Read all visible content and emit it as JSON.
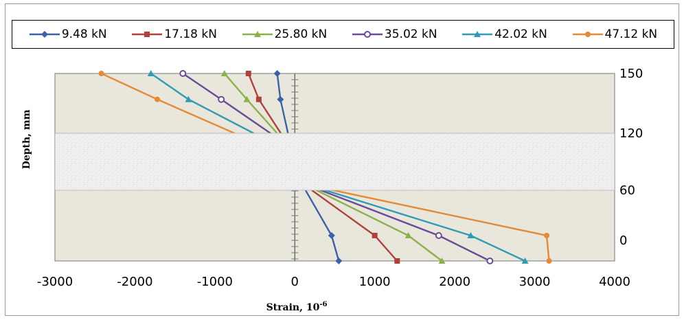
{
  "chart_data": {
    "type": "line",
    "title": "",
    "xlabel": "Strain, 10",
    "xlabel_sup": "-6",
    "ylabel": "Depth, mm",
    "xlim": [
      -3000,
      4000
    ],
    "x_ticks": [
      "-3000",
      "-2000",
      "-1000",
      "0",
      "1000",
      "2000",
      "3000",
      "4000"
    ],
    "y_ticks": [
      "150",
      "120",
      "60",
      "0"
    ],
    "legend_position": "top",
    "grid": false,
    "series": [
      {
        "name": "9.48 kN",
        "color": "#3b62a8",
        "marker": "diamond",
        "points": [
          [
            -220,
            150
          ],
          [
            -180,
            137
          ],
          [
            -80,
            118
          ],
          [
            100,
            65
          ],
          [
            460,
            10
          ],
          [
            550,
            0
          ]
        ]
      },
      {
        "name": "17.18 kN",
        "color": "#b0403c",
        "marker": "square",
        "points": [
          [
            -580,
            150
          ],
          [
            -450,
            137
          ],
          [
            -160,
            118
          ],
          [
            130,
            65
          ],
          [
            1000,
            10
          ],
          [
            1280,
            0
          ]
        ]
      },
      {
        "name": "25.80 kN",
        "color": "#8bb14a",
        "marker": "triangle",
        "points": [
          [
            -880,
            150
          ],
          [
            -600,
            137
          ],
          [
            -200,
            118
          ],
          [
            150,
            65
          ],
          [
            1420,
            10
          ],
          [
            1840,
            0
          ]
        ]
      },
      {
        "name": "35.02 kN",
        "color": "#6a4b98",
        "marker": "circle-open",
        "points": [
          [
            -1400,
            150
          ],
          [
            -920,
            137
          ],
          [
            -270,
            118
          ],
          [
            170,
            65
          ],
          [
            1800,
            10
          ],
          [
            2440,
            0
          ]
        ]
      },
      {
        "name": "42.02 kN",
        "color": "#2f9bb4",
        "marker": "triangle",
        "points": [
          [
            -1800,
            150
          ],
          [
            -1330,
            137
          ],
          [
            -470,
            118
          ],
          [
            190,
            65
          ],
          [
            2200,
            10
          ],
          [
            2880,
            0
          ]
        ]
      },
      {
        "name": "47.12 kN",
        "color": "#e48a32",
        "marker": "circle",
        "points": [
          [
            -2420,
            150
          ],
          [
            -1720,
            137
          ],
          [
            -700,
            118
          ],
          [
            200,
            65
          ],
          [
            3150,
            10
          ],
          [
            3180,
            0
          ]
        ]
      }
    ]
  }
}
